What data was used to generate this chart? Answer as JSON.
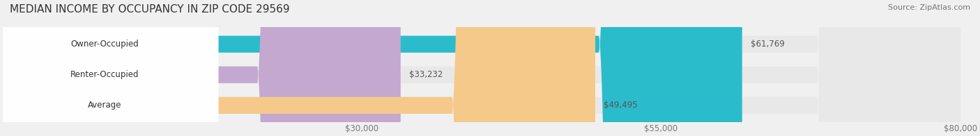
{
  "title": "MEDIAN INCOME BY OCCUPANCY IN ZIP CODE 29569",
  "source": "Source: ZipAtlas.com",
  "categories": [
    "Owner-Occupied",
    "Renter-Occupied",
    "Average"
  ],
  "values": [
    61769,
    33232,
    49495
  ],
  "labels": [
    "$61,769",
    "$33,232",
    "$49,495"
  ],
  "bar_colors": [
    "#2bbccc",
    "#c4a8d0",
    "#f5c98a"
  ],
  "background_color": "#f0f0f0",
  "bar_bg_color": "#e0e0e0",
  "xlim": [
    0,
    80000
  ],
  "xticks": [
    30000,
    55000,
    80000
  ],
  "xticklabels": [
    "$30,000",
    "$55,000",
    "$80,000"
  ],
  "bar_height": 0.55,
  "title_fontsize": 11,
  "label_fontsize": 8.5,
  "tick_fontsize": 8.5,
  "source_fontsize": 8
}
